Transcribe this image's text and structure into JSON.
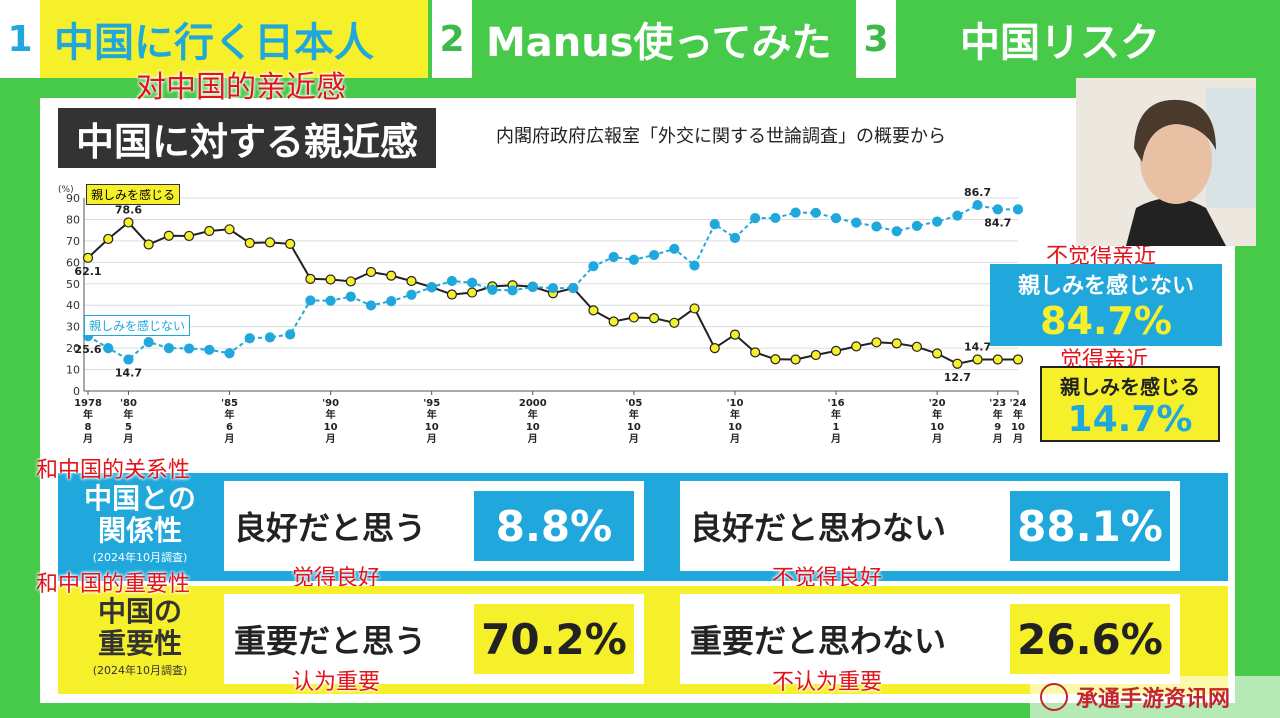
{
  "tabs": [
    {
      "num": "1",
      "label": "中国に行く日本人"
    },
    {
      "num": "2",
      "label": "Manus使ってみた"
    },
    {
      "num": "3",
      "label": "中国リスク"
    }
  ],
  "annotations": {
    "top": "对中国的亲近感",
    "no_affinity": "不觉得亲近",
    "affinity": "觉得亲近",
    "relationship": "和中国的关系性",
    "good": "觉得良好",
    "not_good": "不觉得良好",
    "importance": "和中国的重要性",
    "important": "认为重要",
    "not_important": "不认为重要"
  },
  "title": "中国に対する親近感",
  "source": "内閣府政府広報室「外交に関する世論調査」の概要から",
  "callouts": {
    "no_affinity_label": "親しみを感じない",
    "no_affinity_value": "84.7%",
    "affinity_label": "親しみを感じる",
    "affinity_value": "14.7%"
  },
  "rows": {
    "relationship": {
      "head1": "中国との",
      "head2": "関係性",
      "sub": "(2024年10月調査)",
      "q1": "良好だと思う",
      "v1": "8.8%",
      "q2": "良好だと思わない",
      "v2": "88.1%"
    },
    "importance": {
      "head1": "中国の",
      "head2": "重要性",
      "sub": "(2024年10月調査)",
      "q1": "重要だと思う",
      "v1": "70.2%",
      "q2": "重要だと思わない",
      "v2": "26.6%"
    }
  },
  "watermark": "承通手游资讯网",
  "colors": {
    "green": "#47c94a",
    "yellow": "#f6f02a",
    "blue": "#20a8dc",
    "dark": "#333333",
    "red": "#e3131b"
  },
  "chart_data": {
    "type": "line",
    "unit": "(%)",
    "ylim": [
      0,
      90
    ],
    "yticks": [
      0,
      10,
      20,
      30,
      40,
      50,
      60,
      70,
      80,
      90
    ],
    "x_tick_labels": [
      {
        "idx": 0,
        "lines": [
          "1978",
          "年",
          "8",
          "月"
        ]
      },
      {
        "idx": 2,
        "lines": [
          "'80",
          "年",
          "5",
          "月"
        ]
      },
      {
        "idx": 7,
        "lines": [
          "'85",
          "年",
          "6",
          "月"
        ]
      },
      {
        "idx": 12,
        "lines": [
          "'90",
          "年",
          "10",
          "月"
        ]
      },
      {
        "idx": 17,
        "lines": [
          "'95",
          "年",
          "10",
          "月"
        ]
      },
      {
        "idx": 22,
        "lines": [
          "2000",
          "年",
          "10",
          "月"
        ]
      },
      {
        "idx": 27,
        "lines": [
          "'05",
          "年",
          "10",
          "月"
        ]
      },
      {
        "idx": 32,
        "lines": [
          "'10",
          "年",
          "10",
          "月"
        ]
      },
      {
        "idx": 37,
        "lines": [
          "'16",
          "年",
          "1",
          "月"
        ]
      },
      {
        "idx": 42,
        "lines": [
          "'20",
          "年",
          "10",
          "月"
        ]
      },
      {
        "idx": 45,
        "lines": [
          "'23",
          "年",
          "9",
          "月"
        ]
      },
      {
        "idx": 46,
        "lines": [
          "'24",
          "年",
          "10",
          "月"
        ]
      }
    ],
    "series": [
      {
        "name": "親しみを感じる",
        "color": "#222222",
        "values": [
          62.1,
          70.9,
          78.6,
          68.3,
          72.4,
          72.3,
          74.6,
          75.4,
          69.0,
          69.3,
          68.6,
          52.3,
          52.0,
          51.1,
          55.5,
          53.8,
          51.3,
          48.4,
          45.0,
          45.9,
          48.8,
          49.3,
          48.6,
          45.6,
          48.0,
          37.6,
          32.4,
          34.3,
          34.0,
          31.8,
          38.5,
          20.0,
          26.3,
          18.0,
          14.8,
          14.7,
          16.8,
          18.7,
          20.8,
          22.7,
          22.2,
          20.6,
          17.5,
          12.7,
          14.7,
          14.7,
          14.7
        ]
      },
      {
        "name": "親しみを感じない",
        "color": "#20a8dc",
        "values": [
          25.6,
          20.0,
          14.7,
          22.8,
          20.0,
          19.8,
          19.2,
          17.6,
          24.6,
          25.0,
          26.4,
          42.2,
          42.1,
          44.0,
          39.9,
          41.9,
          44.9,
          48.4,
          51.3,
          50.5,
          47.2,
          46.9,
          48.5,
          48.0,
          48.0,
          58.2,
          62.5,
          61.2,
          63.4,
          66.3,
          58.5,
          77.8,
          71.4,
          80.6,
          80.7,
          83.2,
          83.1,
          80.6,
          78.5,
          76.7,
          74.5,
          77.0,
          79.0,
          81.8,
          86.7,
          84.7,
          84.7
        ]
      }
    ],
    "point_labels": [
      {
        "series": 0,
        "idx": 0,
        "text": "62.1"
      },
      {
        "series": 0,
        "idx": 2,
        "text": "78.6"
      },
      {
        "series": 0,
        "idx": 43,
        "text": "12.7"
      },
      {
        "series": 0,
        "idx": 44,
        "text": "14.7"
      },
      {
        "series": 1,
        "idx": 0,
        "text": "25.6"
      },
      {
        "series": 1,
        "idx": 2,
        "text": "14.7"
      },
      {
        "series": 1,
        "idx": 44,
        "text": "86.7"
      },
      {
        "series": 1,
        "idx": 45,
        "text": "84.7"
      }
    ]
  }
}
